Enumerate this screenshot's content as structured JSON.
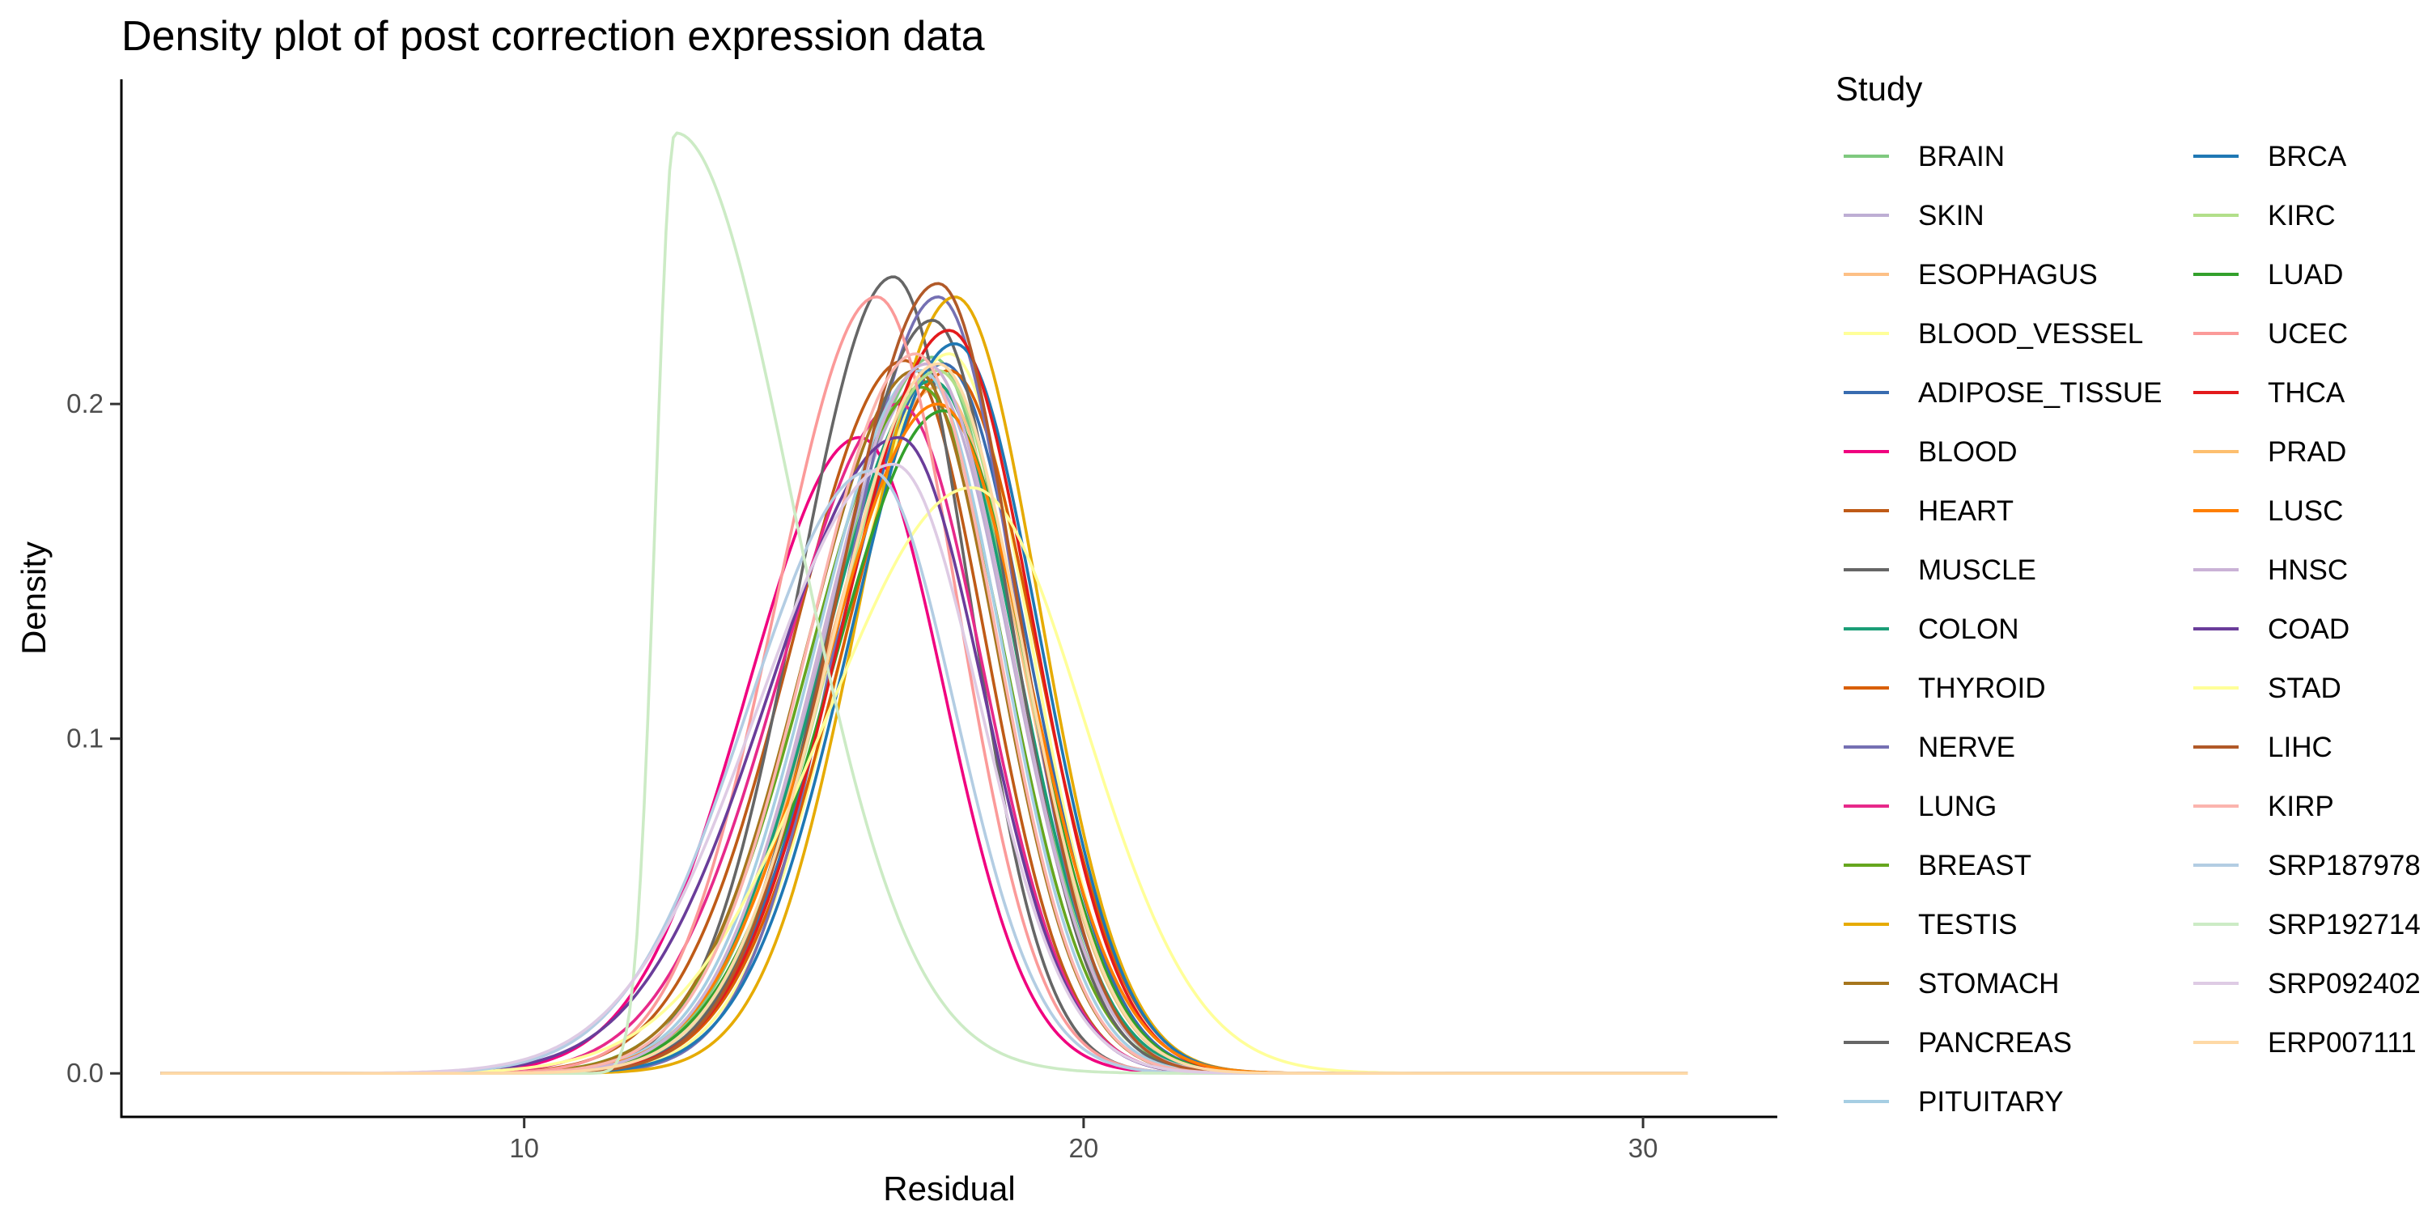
{
  "chart_data": {
    "type": "line",
    "title": "Density plot of post correction expression data",
    "xlabel": "Residual",
    "ylabel": "Density",
    "xlim": [
      2.8,
      32.4
    ],
    "ylim": [
      -0.013,
      0.297
    ],
    "x_ticks": [
      10,
      20,
      30
    ],
    "x_tick_labels": [
      "10",
      "20",
      "30"
    ],
    "y_ticks": [
      0.0,
      0.1,
      0.2
    ],
    "y_tick_labels": [
      "0.0",
      "0.1",
      "0.2"
    ],
    "grid": false,
    "legend": {
      "title": "Study",
      "position": "right",
      "columns": 2
    },
    "series": [
      {
        "name": "BRAIN",
        "color": "#7FC97F",
        "mu": 17.3,
        "sl": 1.9,
        "sr": 1.45,
        "peak": 0.214
      },
      {
        "name": "SKIN",
        "color": "#BEAED4",
        "mu": 17.2,
        "sl": 1.9,
        "sr": 1.5,
        "peak": 0.208
      },
      {
        "name": "ESOPHAGUS",
        "color": "#FDC086",
        "mu": 17.4,
        "sl": 2.0,
        "sr": 1.5,
        "peak": 0.205
      },
      {
        "name": "BLOOD_VESSEL",
        "color": "#FFFF99",
        "mu": 17.6,
        "sl": 1.85,
        "sr": 1.45,
        "peak": 0.215
      },
      {
        "name": "ADIPOSE_TISSUE",
        "color": "#386CB0",
        "mu": 17.5,
        "sl": 1.9,
        "sr": 1.5,
        "peak": 0.212
      },
      {
        "name": "BLOOD",
        "color": "#F0027F",
        "mu": 16.0,
        "sl": 2.0,
        "sr": 1.5,
        "peak": 0.19
      },
      {
        "name": "HEART",
        "color": "#BF5B17",
        "mu": 16.8,
        "sl": 2.0,
        "sr": 1.45,
        "peak": 0.213
      },
      {
        "name": "MUSCLE",
        "color": "#666666",
        "mu": 16.6,
        "sl": 1.7,
        "sr": 1.35,
        "peak": 0.238
      },
      {
        "name": "COLON",
        "color": "#1B9E77",
        "mu": 17.3,
        "sl": 1.95,
        "sr": 1.5,
        "peak": 0.207
      },
      {
        "name": "THYROID",
        "color": "#D95F02",
        "mu": 17.6,
        "sl": 1.9,
        "sr": 1.55,
        "peak": 0.21
      },
      {
        "name": "NERVE",
        "color": "#7570B3",
        "mu": 17.4,
        "sl": 1.7,
        "sr": 1.4,
        "peak": 0.232
      },
      {
        "name": "LUNG",
        "color": "#E7298A",
        "mu": 16.7,
        "sl": 2.1,
        "sr": 1.5,
        "peak": 0.2
      },
      {
        "name": "BREAST",
        "color": "#66A61E",
        "mu": 17.1,
        "sl": 2.0,
        "sr": 1.5,
        "peak": 0.205
      },
      {
        "name": "TESTIS",
        "color": "#E6AB02",
        "mu": 17.7,
        "sl": 1.7,
        "sr": 1.5,
        "peak": 0.232
      },
      {
        "name": "STOMACH",
        "color": "#A6761D",
        "mu": 17.0,
        "sl": 1.95,
        "sr": 1.45,
        "peak": 0.21
      },
      {
        "name": "PANCREAS",
        "color": "#666666",
        "mu": 17.3,
        "sl": 1.8,
        "sr": 1.4,
        "peak": 0.225
      },
      {
        "name": "PITUITARY",
        "color": "#A6CEE3",
        "mu": 17.1,
        "sl": 1.9,
        "sr": 1.45,
        "peak": 0.21
      },
      {
        "name": "BRCA",
        "color": "#1F78B4",
        "mu": 17.7,
        "sl": 1.85,
        "sr": 1.5,
        "peak": 0.218
      },
      {
        "name": "KIRC",
        "color": "#B2DF8A",
        "mu": 17.4,
        "sl": 1.9,
        "sr": 1.5,
        "peak": 0.21
      },
      {
        "name": "LUAD",
        "color": "#33A02C",
        "mu": 17.5,
        "sl": 2.0,
        "sr": 1.5,
        "peak": 0.198
      },
      {
        "name": "UCEC",
        "color": "#FB9A99",
        "mu": 16.3,
        "sl": 1.8,
        "sr": 1.45,
        "peak": 0.232
      },
      {
        "name": "THCA",
        "color": "#E31A1C",
        "mu": 17.6,
        "sl": 1.9,
        "sr": 1.5,
        "peak": 0.222
      },
      {
        "name": "PRAD",
        "color": "#FDBF6F",
        "mu": 17.2,
        "sl": 1.9,
        "sr": 1.5,
        "peak": 0.212
      },
      {
        "name": "LUSC",
        "color": "#FF7F00",
        "mu": 17.4,
        "sl": 2.0,
        "sr": 1.6,
        "peak": 0.2
      },
      {
        "name": "HNSC",
        "color": "#CAB2D6",
        "mu": 17.2,
        "sl": 1.9,
        "sr": 1.5,
        "peak": 0.212
      },
      {
        "name": "COAD",
        "color": "#6A3D9A",
        "mu": 16.7,
        "sl": 2.3,
        "sr": 1.5,
        "peak": 0.19
      },
      {
        "name": "STAD",
        "color": "#FFFF99",
        "mu": 18.0,
        "sl": 2.6,
        "sr": 2.0,
        "peak": 0.175
      },
      {
        "name": "LIHC",
        "color": "#B15928",
        "mu": 17.4,
        "sl": 1.8,
        "sr": 1.4,
        "peak": 0.236
      },
      {
        "name": "KIRP",
        "color": "#FBB4AE",
        "mu": 17.0,
        "sl": 1.9,
        "sr": 1.45,
        "peak": 0.215
      },
      {
        "name": "SRP187978",
        "color": "#B3CDE3",
        "mu": 16.2,
        "sl": 2.2,
        "sr": 1.5,
        "peak": 0.18
      },
      {
        "name": "SRP192714",
        "color": "#CCEBC5",
        "mu": 12.7,
        "sl": 0.35,
        "sr": 2.1,
        "peak": 0.281
      },
      {
        "name": "SRP092402",
        "color": "#DECBE4",
        "mu": 16.6,
        "sl": 2.4,
        "sr": 1.55,
        "peak": 0.182
      },
      {
        "name": "ERP007111",
        "color": "#FED9A6",
        "mu": 17.4,
        "sl": 1.9,
        "sr": 1.5,
        "peak": 0.212
      }
    ]
  }
}
